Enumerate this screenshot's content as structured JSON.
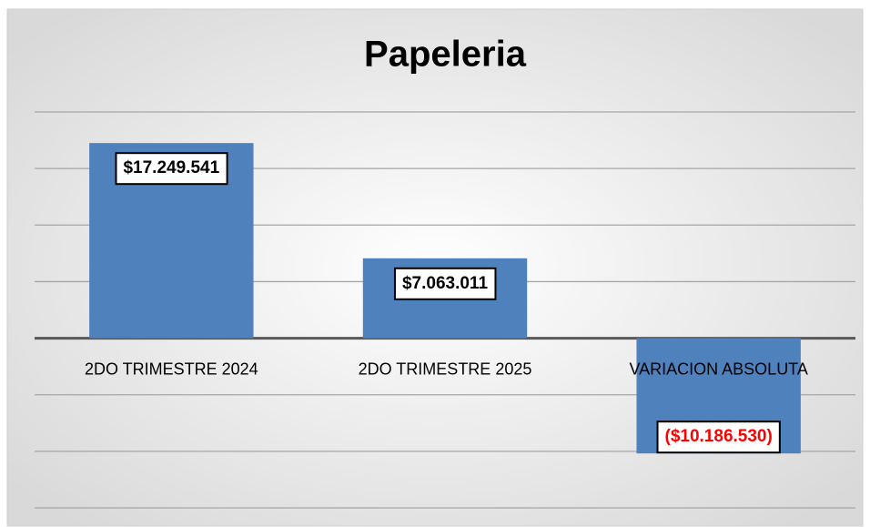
{
  "chart_data": {
    "type": "bar",
    "title": "Papeleria",
    "categories": [
      "2DO TRIMESTRE 2024",
      "2DO TRIMESTRE 2025",
      "VARIACION ABSOLUTA"
    ],
    "values": [
      17249541,
      7063011,
      -10186530
    ],
    "value_labels": [
      "$17.249.541",
      "$7.063.011",
      "($10.186.530)"
    ],
    "color": "#4f81bd",
    "negative_label_color": "#ff0000",
    "ylim": [
      -15000000,
      20000000
    ],
    "yticks": [
      -15000000,
      -10000000,
      -5000000,
      0,
      5000000,
      10000000,
      15000000,
      20000000
    ],
    "grid": true
  }
}
